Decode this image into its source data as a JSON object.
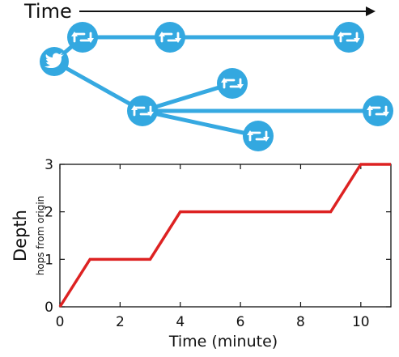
{
  "diagram": {
    "time_label": "Time",
    "line_color": "#36a9e1",
    "node_color": "#33a8e0",
    "root_icon": "twitter-bird-icon",
    "retweet_icon": "retweet-icon",
    "tree": {
      "root": "tweet",
      "edges": [
        [
          "tweet",
          "rt1"
        ],
        [
          "rt1",
          "rt2"
        ],
        [
          "rt2",
          "rt3"
        ],
        [
          "tweet",
          "rt4"
        ],
        [
          "rt4",
          "rt5"
        ],
        [
          "rt4",
          "rt6"
        ],
        [
          "rt4",
          "rt7"
        ]
      ]
    }
  },
  "chart_data": {
    "type": "line",
    "title": "",
    "xlabel": "Time (minute)",
    "ylabel": "Depth",
    "ylabel_sub": "hops from origin",
    "xlim": [
      0,
      11
    ],
    "ylim": [
      0,
      3
    ],
    "xticks": [
      0,
      2,
      4,
      6,
      8,
      10
    ],
    "yticks": [
      0,
      1,
      2,
      3
    ],
    "grid": false,
    "color": "#dd2222",
    "x": [
      0,
      1,
      3,
      4,
      9,
      10,
      11
    ],
    "y": [
      0,
      1,
      1,
      2,
      2,
      3,
      3
    ]
  }
}
